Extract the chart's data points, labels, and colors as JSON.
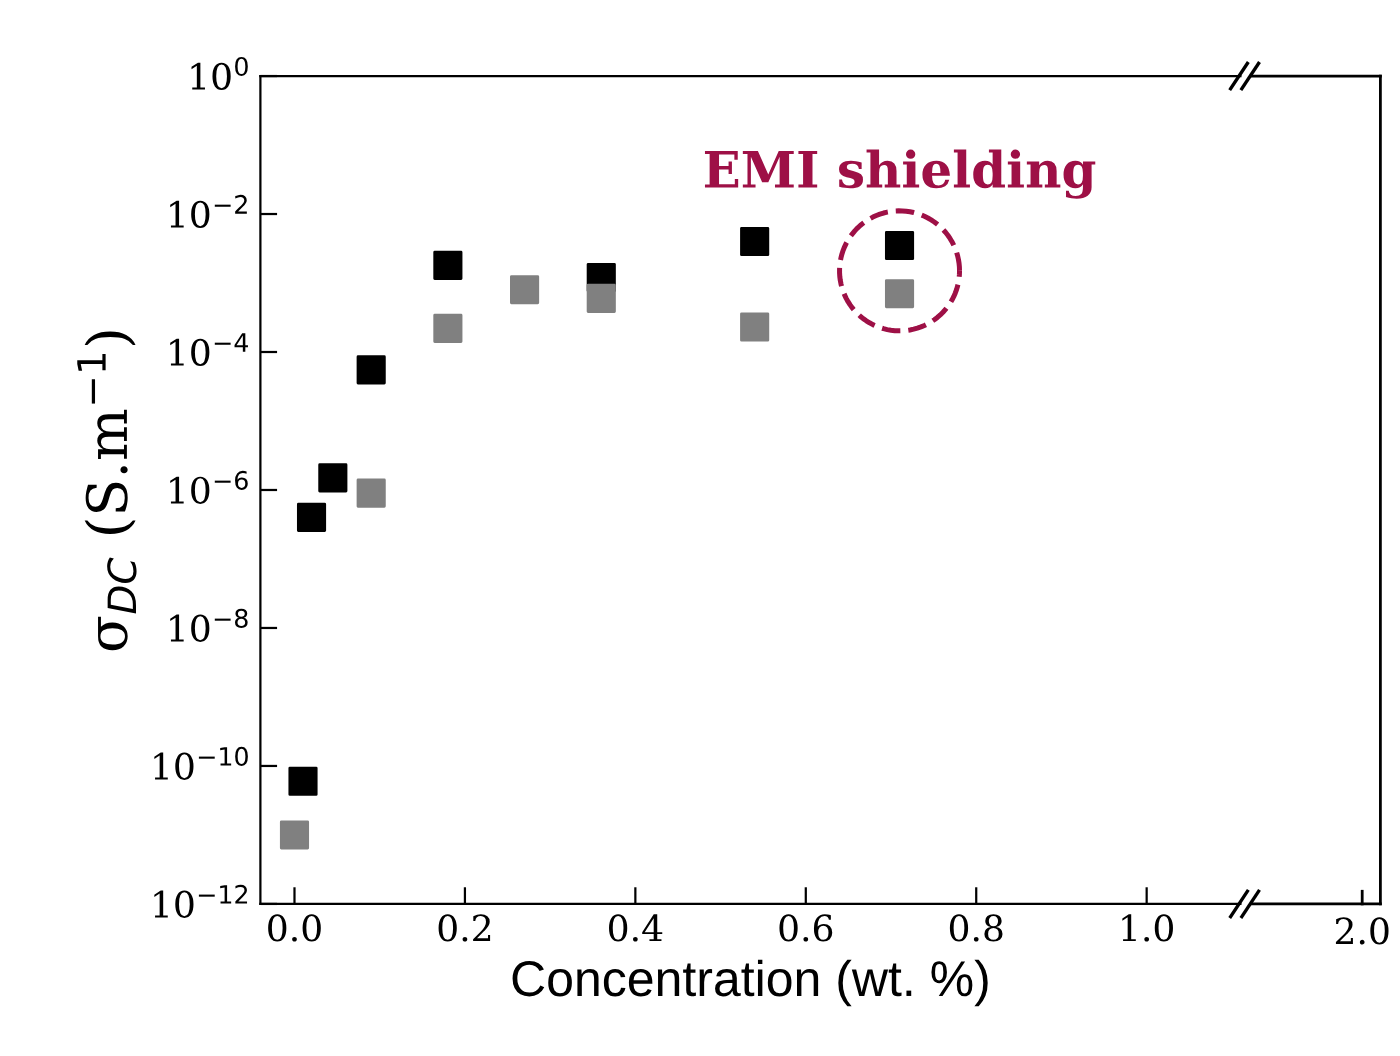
{
  "chart_data": {
    "type": "scatter",
    "xlabel": "Concentration (wt. %)",
    "ylabel": "σ$_{DC}$ (S.m$^{−1}$)",
    "log": "y",
    "marker": "square",
    "xlim": [
      -0.04,
      1.11
    ],
    "xticks": [
      {
        "value": 0,
        "label": "0.0"
      },
      0.2,
      0.4,
      0.6,
      0.8,
      {
        "value": 1,
        "label": "1.0"
      }
    ],
    "ylim": [
      1e-12,
      1
    ],
    "yticks": [
      {
        "value": 1e-12,
        "label": "10$^{−12}$"
      },
      {
        "value": 1e-10,
        "label": "10$^{−10}$"
      },
      {
        "value": 1e-08,
        "label": "10$^{−8}$"
      },
      {
        "value": 1e-06,
        "label": "10$^{−6}$"
      },
      {
        "value": 0.0001,
        "label": "10$^{−4}$"
      },
      {
        "value": 0.01,
        "label": "10$^{−2}$"
      },
      {
        "value": 1,
        "label": "10$^{0}$"
      }
    ],
    "series": [
      {
        "color": "#000000",
        "x": [
          0.01,
          0.02,
          0.045,
          0.09,
          0.18,
          0.36,
          0.54,
          0.71
        ],
        "values": [
          6e-11,
          4e-07,
          1.5e-06,
          5.5e-05,
          0.0018,
          0.0012,
          0.004,
          0.0035
        ]
      },
      {
        "color": "#808080",
        "x": [
          0.0,
          0.09,
          0.18,
          0.27,
          0.36,
          0.54,
          0.71
        ],
        "values": [
          1e-11,
          9e-07,
          0.00022,
          0.0008,
          0.0006,
          0.00023,
          0.0007
        ]
      }
    ],
    "annotations": [
      {
        "text": "EMI shielding",
        "x": 0.71,
        "y": 0.0015
      },
      "2.0"
    ]
  }
}
